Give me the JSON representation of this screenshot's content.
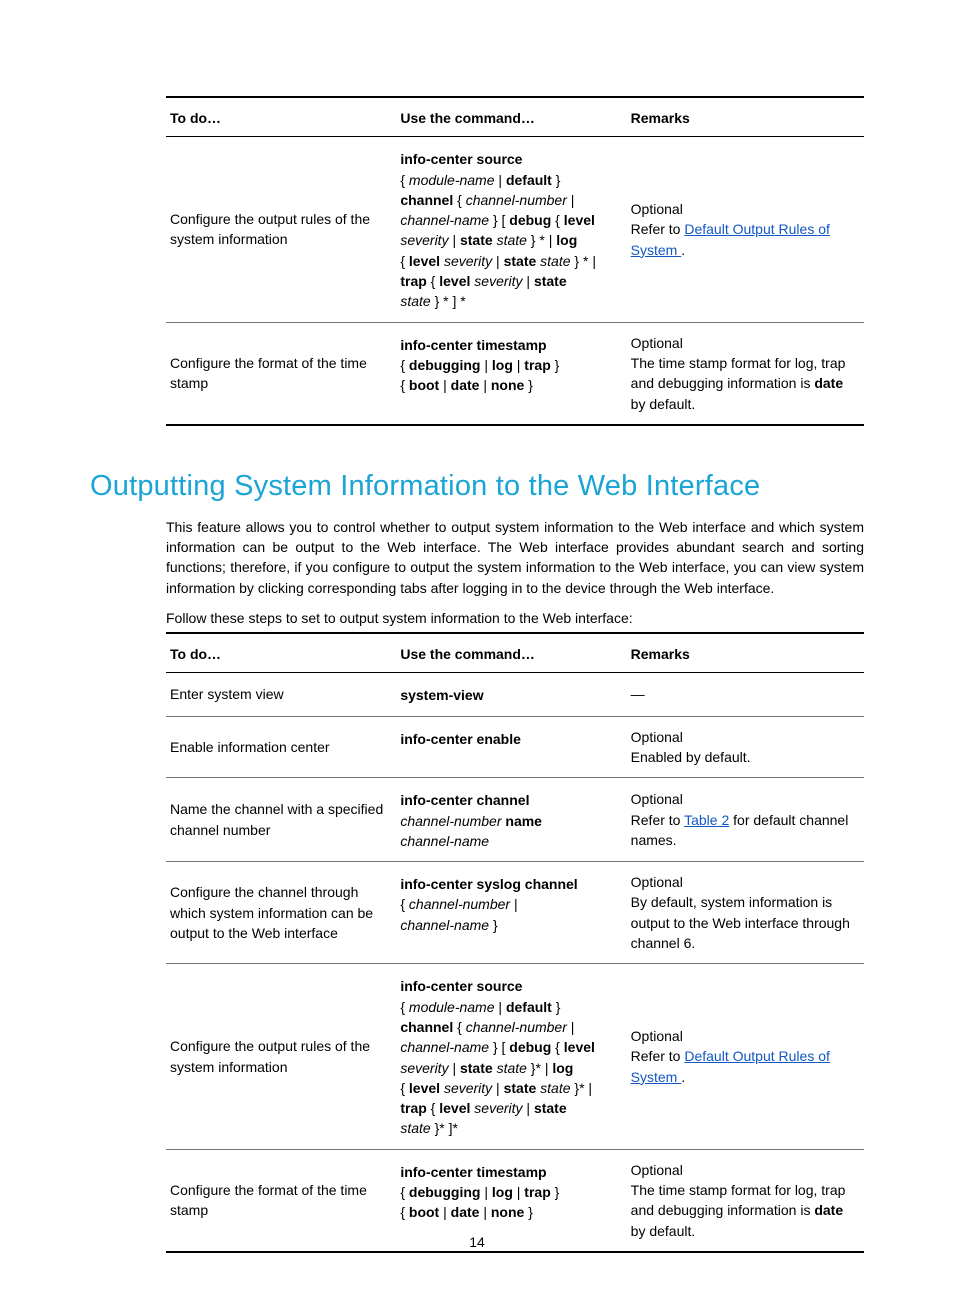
{
  "colors": {
    "heading": "#1ba4d6",
    "link": "#1257c4",
    "text": "#000000",
    "border_thick": "#000000",
    "border_thin": "#777777",
    "background": "#ffffff"
  },
  "typography": {
    "body_fontsize_pt": 10.5,
    "heading_fontsize_pt": 22,
    "heading_weight": 300
  },
  "table1": {
    "headers": {
      "todo": "To do…",
      "cmd": "Use the command…",
      "remarks": "Remarks"
    },
    "rows": [
      {
        "todo": "Configure the output rules of the system information",
        "cmd_html": "<span class='b'>info-center source</span><br>{ <span class='i'>module-name</span> | <span class='b'>default</span> }<br><span class='b'>channel</span> { <span class='i'>channel-number</span> |<br><span class='i'>channel-name</span> } [ <span class='b'>debug</span> { <span class='b'>level</span><br><span class='i'>severity</span> | <span class='b'>state</span> <span class='i'>state</span> } * | <span class='b'>log</span><br>{ <span class='b'>level</span> <span class='i'>severity</span> | <span class='b'>state</span> <span class='i'>state</span> } * |<br><span class='b'>trap</span> { <span class='b'>level</span> <span class='i'>severity</span> | <span class='b'>state</span><br><span class='i'>state</span> } * ] *",
        "remarks_html": "Optional<br>Refer to <a class='link' href='#' data-name='link-default-output-rules' data-interactable='true'>Default Output Rules of System </a>."
      },
      {
        "todo": "Configure the format of the time stamp",
        "cmd_html": "<span class='b'>info-center timestamp</span><br>{ <span class='b'>debugging</span> | <span class='b'>log</span> | <span class='b'>trap</span> }<br>{ <span class='b'>boot</span> | <span class='b'>date</span> | <span class='b'>none</span> }",
        "remarks_html": "Optional<br>The time stamp format for log, trap and debugging information is <span class='b'>date</span> by default."
      }
    ]
  },
  "section_heading": "Outputting System Information to the Web Interface",
  "section_para": "This feature allows you to control whether to output system information to the Web interface and which system information can be output to the Web interface. The Web interface provides abundant search and sorting functions; therefore, if you configure to output the system information to the Web interface, you can view system information by clicking corresponding tabs after logging in to the device through the Web interface.",
  "section_lead": "Follow these steps to set to output system information to the Web interface:",
  "table2": {
    "headers": {
      "todo": "To do…",
      "cmd": "Use the command…",
      "remarks": "Remarks"
    },
    "rows": [
      {
        "todo": "Enter system view",
        "cmd_html": "<span class='b'>system-view</span>",
        "remarks_html": "—"
      },
      {
        "todo": "Enable information center",
        "cmd_html": "<span class='b'>info-center enable</span>",
        "remarks_html": "Optional<br>Enabled by default."
      },
      {
        "todo": "Name the channel with a specified channel number",
        "cmd_html": "<span class='b'>info-center channel</span><br><span class='i'>channel-number</span> <span class='b'>name</span><br><span class='i'>channel-name</span>",
        "remarks_html": "Optional<br>Refer to <a class='link' href='#' data-name='link-table-2' data-interactable='true'>Table 2</a> for default channel names."
      },
      {
        "todo": "Configure the channel through which system information can be output to the Web interface",
        "cmd_html": "<span class='b'>info-center syslog channel</span><br>{ <span class='i'>channel-number</span> |<br><span class='i'>channel-name</span> }",
        "remarks_html": "Optional<br>By default, system information is output to the Web interface through channel 6."
      },
      {
        "todo": "Configure the output rules of the system information",
        "cmd_html": "<span class='b'>info-center source</span><br>{ <span class='i'>module-name</span> | <span class='b'>default</span> }<br><span class='b'>channel</span> { <span class='i'>channel-number</span> |<br><span class='i'>channel-name</span> } [ <span class='b'>debug</span> { <span class='b'>level</span><br><span class='i'>severity</span> | <span class='b'>state</span> <span class='i'>state</span> }* | <span class='b'>log</span><br>{ <span class='b'>level</span> <span class='i'>severity</span> | <span class='b'>state</span> <span class='i'>state</span> }* |<br><span class='b'>trap</span> { <span class='b'>level</span> <span class='i'>severity</span> | <span class='b'>state</span><br><span class='i'>state</span> }* ]*",
        "remarks_html": "Optional<br>Refer to <a class='link' href='#' data-name='link-default-output-rules-2' data-interactable='true'>Default Output Rules of System </a>."
      },
      {
        "todo": "Configure the format of the time stamp",
        "cmd_html": "<span class='b'>info-center timestamp</span><br>{ <span class='b'>debugging</span> | <span class='b'>log</span> | <span class='b'>trap</span> }<br>{ <span class='b'>boot</span> | <span class='b'>date</span> | <span class='b'>none</span> }",
        "remarks_html": "Optional<br>The time stamp format for log, trap and debugging information is <span class='b'>date</span> by default."
      }
    ]
  },
  "page_number": "14"
}
